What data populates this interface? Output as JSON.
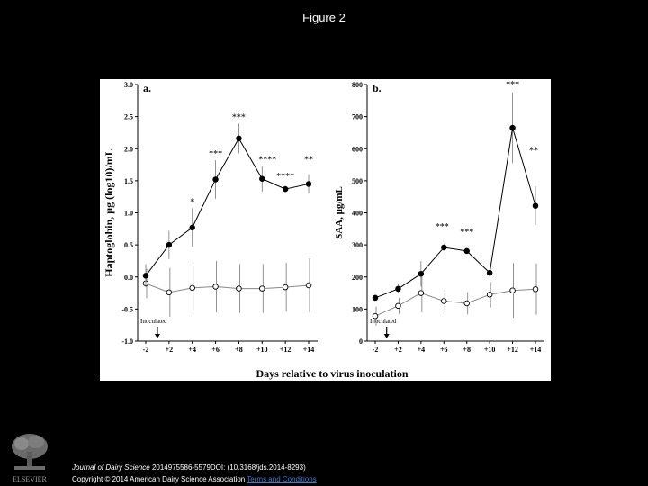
{
  "page_title": "Figure 2",
  "footer": {
    "journal": "Journal of Dairy Science",
    "citation_rest": " 2014975586-5579DOI: (10.3168/jds.2014-8293)",
    "copyright": "Copyright © 2014 American Dairy Science Association",
    "link_text": "Terms and Conditions"
  },
  "logo_text": "ELSEVIER",
  "chart_data": [
    {
      "type": "line",
      "panel_label": "a.",
      "ylabel": "Haptoglobin, μg (log10)/mL",
      "categories": [
        "-2",
        "+2",
        "+4",
        "+6",
        "+8",
        "+10",
        "+12",
        "+14"
      ],
      "yticks": [
        "3.0",
        "2.5",
        "2.0",
        "1.5",
        "1.0",
        "0.5",
        "0.0",
        "-0.5",
        "-1.0"
      ],
      "ylim": [
        -1.0,
        3.0
      ],
      "annotation": "Inoculated",
      "series": [
        {
          "marker": "filled",
          "values": [
            0.02,
            0.5,
            0.77,
            1.52,
            2.16,
            1.53,
            1.37,
            1.45
          ],
          "errors": [
            0.18,
            0.22,
            0.3,
            0.3,
            0.23,
            0.2,
            0.05,
            0.15
          ],
          "sig": [
            "",
            "",
            "*",
            "***",
            "***",
            "****",
            "****",
            "**"
          ]
        },
        {
          "marker": "open",
          "values": [
            -0.1,
            -0.24,
            -0.17,
            -0.15,
            -0.18,
            -0.18,
            -0.16,
            -0.13
          ],
          "errors": [
            0.23,
            0.38,
            0.35,
            0.4,
            0.38,
            0.38,
            0.38,
            0.42
          ]
        }
      ]
    },
    {
      "type": "line",
      "panel_label": "b.",
      "ylabel": "SAA, μg/mL",
      "categories": [
        "-2",
        "+2",
        "+4",
        "+6",
        "+8",
        "+10",
        "+12",
        "+14"
      ],
      "yticks": [
        "800",
        "700",
        "600",
        "500",
        "400",
        "300",
        "200",
        "100",
        "0"
      ],
      "ylim": [
        0,
        800
      ],
      "annotation": "Inoculated",
      "series": [
        {
          "marker": "filled",
          "values": [
            135,
            163,
            210,
            292,
            281,
            213,
            665,
            422
          ],
          "errors": [
            10,
            15,
            40,
            10,
            8,
            10,
            110,
            60
          ],
          "sig": [
            "",
            "",
            "",
            "***",
            "***",
            "",
            "***",
            "**"
          ]
        },
        {
          "marker": "open",
          "values": [
            78,
            110,
            150,
            125,
            118,
            145,
            158,
            162
          ],
          "errors": [
            30,
            25,
            60,
            35,
            35,
            40,
            85,
            80
          ]
        }
      ]
    }
  ],
  "xlabel": "Days relative to virus inoculation"
}
